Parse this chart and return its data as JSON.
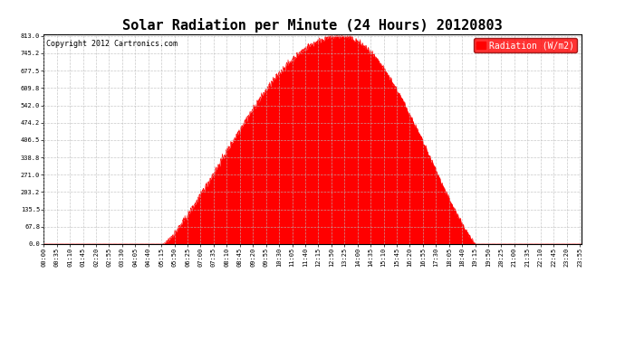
{
  "title": "Solar Radiation per Minute (24 Hours) 20120803",
  "copyright_text": "Copyright 2012 Cartronics.com",
  "legend_label": "Radiation (W/m2)",
  "ylabel_ticks": [
    0.0,
    67.8,
    135.5,
    203.2,
    271.0,
    338.8,
    406.5,
    474.2,
    542.0,
    609.8,
    677.5,
    745.2,
    813.0
  ],
  "ymax": 813.0,
  "ymin": 0.0,
  "fill_color": "#FF0000",
  "line_color": "#FF0000",
  "background_color": "#FFFFFF",
  "grid_color": "#BBBBBB",
  "title_fontsize": 11,
  "copyright_fontsize": 6,
  "tick_fontsize": 5,
  "legend_fontsize": 7,
  "peak_index": 793,
  "peak_value": 813.0,
  "sunrise_index": 318,
  "sunset_index": 1158,
  "total_minutes": 1440,
  "x_tick_step": 35
}
